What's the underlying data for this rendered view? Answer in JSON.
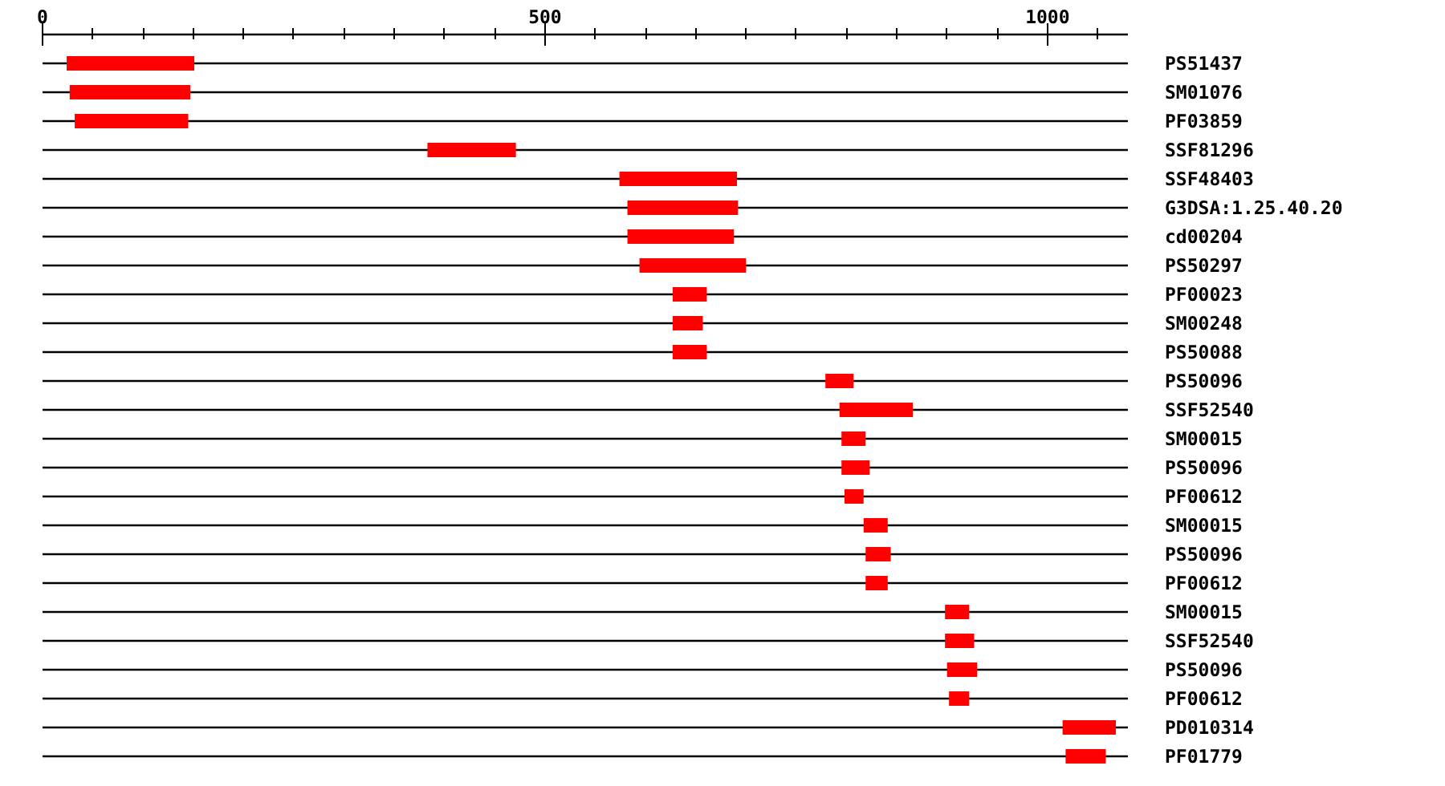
{
  "chart_data": {
    "type": "bar",
    "orientation": "horizontal",
    "categories": [
      "PS51437",
      "SM01076",
      "PF03859",
      "SSF81296",
      "SSF48403",
      "G3DSA:1.25.40.20",
      "cd00204",
      "PS50297",
      "PF00023",
      "SM00248",
      "PS50088",
      "PS50096",
      "SSF52540",
      "SM00015",
      "PS50096",
      "PF00612",
      "SM00015",
      "PS50096",
      "PF00612",
      "SM00015",
      "SSF52540",
      "PS50096",
      "PF00612",
      "PD010314",
      "PF01779"
    ],
    "base": [
      24,
      27,
      32,
      383,
      574,
      582,
      582,
      594,
      627,
      627,
      627,
      779,
      793,
      795,
      795,
      798,
      817,
      819,
      819,
      898,
      898,
      900,
      902,
      1015,
      1018
    ],
    "values": [
      127,
      120,
      113,
      88,
      117,
      110,
      106,
      106,
      34,
      30,
      34,
      28,
      73,
      24,
      28,
      19,
      24,
      25,
      22,
      24,
      29,
      30,
      20,
      53,
      40
    ],
    "color": "#ff0000",
    "xlim": [
      0,
      1080
    ],
    "xticks": [
      0,
      {
        "value": 50,
        "label": null
      },
      {
        "value": 100,
        "label": null
      },
      {
        "value": 150,
        "label": null
      },
      {
        "value": 200,
        "label": null
      },
      {
        "value": 250,
        "label": null
      },
      {
        "value": 300,
        "label": null
      },
      {
        "value": 350,
        "label": null
      },
      {
        "value": 400,
        "label": null
      },
      {
        "value": 450,
        "label": null
      },
      500,
      {
        "value": 550,
        "label": null
      },
      {
        "value": 600,
        "label": null
      },
      {
        "value": 650,
        "label": null
      },
      {
        "value": 700,
        "label": null
      },
      {
        "value": 750,
        "label": null
      },
      {
        "value": 800,
        "label": null
      },
      {
        "value": 850,
        "label": null
      },
      {
        "value": 900,
        "label": null
      },
      {
        "value": 950,
        "label": null
      },
      1000,
      {
        "value": 1050,
        "label": null
      }
    ],
    "grid": "y"
  }
}
